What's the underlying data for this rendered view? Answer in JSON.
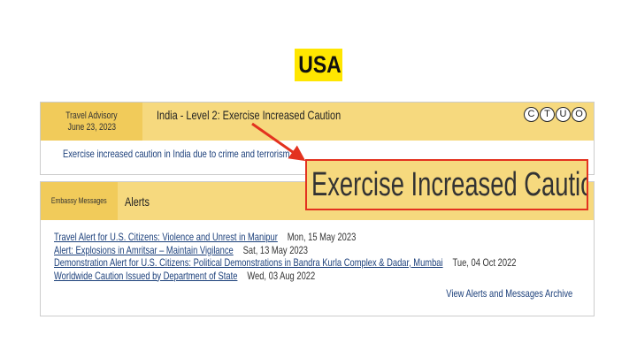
{
  "badge": "USA",
  "advisory": {
    "label": "Travel Advisory",
    "date": "June 23, 2023",
    "title": "India - Level 2: Exercise Increased Caution",
    "icons": [
      "C",
      "T",
      "U",
      "O"
    ],
    "summary": "Exercise increased caution in India due to crime and terrorism."
  },
  "callout": {
    "text": "Exercise Increased Caution",
    "border_color": "#e3321f"
  },
  "messages": {
    "label": "Embassy Messages",
    "title": "Alerts",
    "items": [
      {
        "title": "Travel Alert for U.S. Citizens: Violence and Unrest in Manipur",
        "date": "Mon, 15 May 2023"
      },
      {
        "title": "Alert: Explosions in Amritsar – Maintain Vigilance",
        "date": "Sat, 13 May 2023"
      },
      {
        "title": "Demonstration Alert for U.S. Citizens:  Political Demonstrations in Bandra Kurla Complex & Dadar, Mumbai",
        "date": "Tue, 04 Oct 2022"
      },
      {
        "title": "Worldwide Caution Issued by Department of State",
        "date": "Wed, 03 Aug 2022"
      }
    ],
    "archive": "View Alerts and Messages Archive"
  }
}
